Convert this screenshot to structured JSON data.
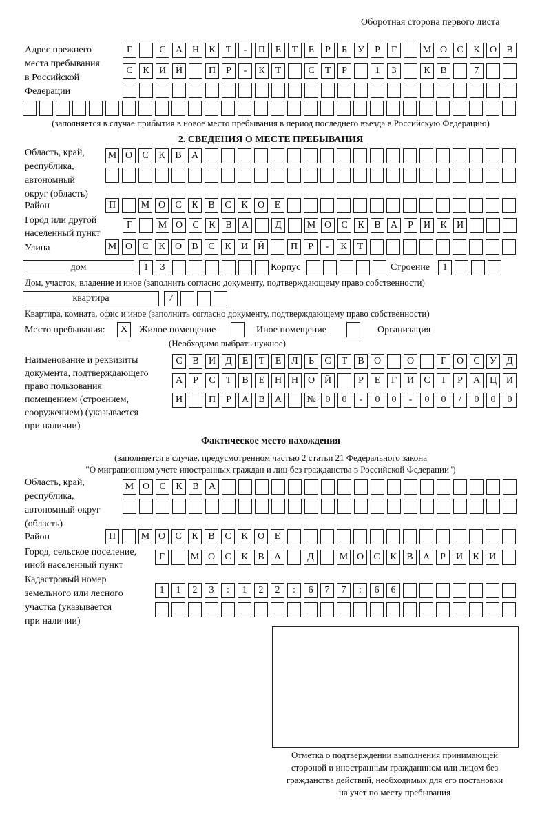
{
  "header": "Оборотная сторона первого листа",
  "prev_address": {
    "label": [
      "Адрес прежнего",
      "места пребывания",
      "в Российской",
      "Федерации"
    ],
    "rows": [
      "Г САНКТ-ПЕТЕРБУРГ МОСКОВ",
      "СКИЙ ПР-КТ СТР 13 КВ 7  ",
      "",
      ""
    ],
    "note": "(заполняется в случае прибытия в новое место пребывания в период последнего въезда в Российскую Федерацию)"
  },
  "section2": {
    "title": "2. СВЕДЕНИЯ О МЕСТЕ ПРЕБЫВАНИЯ",
    "region_label": [
      "Область, край,",
      "республика,",
      "автономный",
      "округ (область)"
    ],
    "region_rows": [
      "МОСКВА",
      ""
    ],
    "district_label": "Район",
    "district": "П МОСКВСКОЕ",
    "city_label": [
      "Город или другой",
      "населенный пункт"
    ],
    "city": "Г МОСКВА Д МОСКВАРИКИ",
    "street_label": "Улица",
    "street": "МОСКОВСКИЙ ПР-КТ",
    "house_type": "дом",
    "house_number": "13",
    "korpus_label": "Корпус",
    "korpus": "",
    "stroenie_label": "Строение",
    "stroenie": "1",
    "house_note": "Дом, участок, владение и иное (заполнить согласно документу, подтверждающему право собственности)",
    "flat_type": "квартира",
    "flat_number": "7",
    "flat_note": "Квартира, комната, офис и иное (заполнить согласно документу, подтверждающему право собственности)",
    "stay_label": "Место пребывания:",
    "stay_options": [
      {
        "label": "Жилое помещение",
        "mark": "X"
      },
      {
        "label": "Иное помещение",
        "mark": ""
      },
      {
        "label": "Организация",
        "mark": ""
      }
    ],
    "stay_note": "(Необходимо выбрать нужное)",
    "doc_label": [
      "Наименование и реквизиты",
      "документа, подтверждающего",
      "право пользования",
      "помещением (строением,",
      "сооружением) (указывается",
      "при наличии)"
    ],
    "doc_rows": [
      "СВИДЕТЕЛЬСТВО О ГОСУД",
      "АРСТВЕННОЙ РЕГИСТРАЦИ",
      "И ПРАВА №00-00-00/000"
    ]
  },
  "actual": {
    "title": "Фактическое место нахождения",
    "note": [
      "(заполняется в случае, предусмотренном частью 2 статьи 21 Федерального закона",
      "\"О миграционном учете иностранных граждан и лиц без гражданства в Российской Федерации\")"
    ],
    "region_label": [
      "Область, край,",
      "республика,",
      "автономный округ",
      "(область)"
    ],
    "region_rows": [
      "МОСКВА",
      ""
    ],
    "district_label": "Район",
    "district": "П МОСКВСКОЕ",
    "city_label": [
      "Город, сельское поселение,",
      "иной населенный пункт"
    ],
    "city": "Г МОСКВА Д МОСКВАРИКИ",
    "cadastre_label": [
      "Кадастровый номер",
      "земельного или лесного",
      "участка (указывается",
      "при наличии)"
    ],
    "cadastre_rows": [
      "1123:122:677:66",
      ""
    ]
  },
  "stamp_caption": [
    "Отметка о подтверждении выполнения принимающей",
    "стороной и иностранным гражданином или лицом без",
    "гражданства действий, необходимых для его постановки",
    "на учет по месту пребывания"
  ]
}
